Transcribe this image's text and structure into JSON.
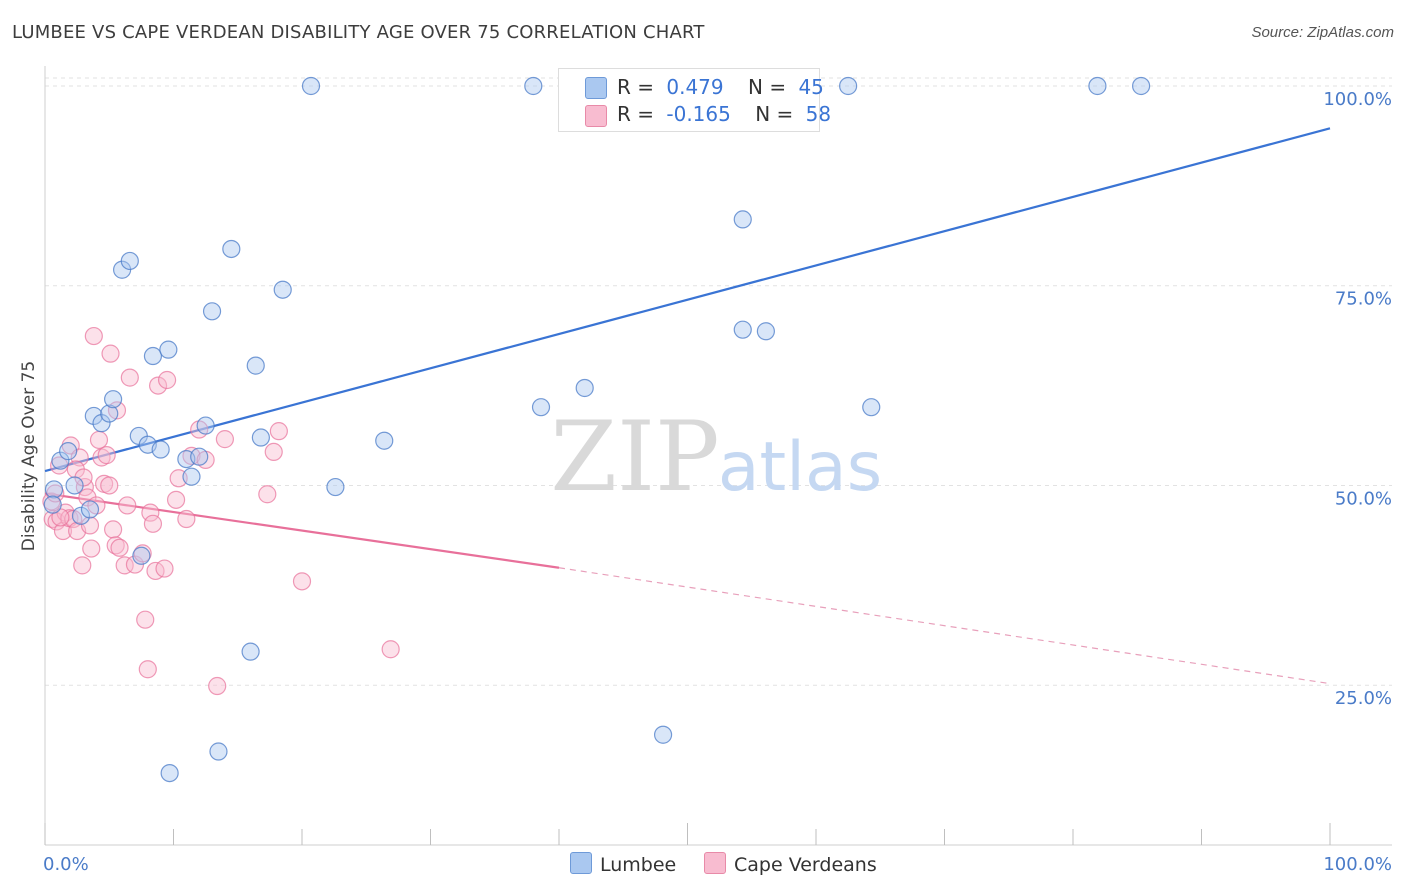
{
  "header": {
    "title": "LUMBEE VS CAPE VERDEAN DISABILITY AGE OVER 75 CORRELATION CHART",
    "source": "Source: ZipAtlas.com"
  },
  "legend": {
    "rows": [
      {
        "r_label": "R =",
        "r_value": "0.479",
        "n_label": "N =",
        "n_value": "45",
        "color": "#aac8f0"
      },
      {
        "r_label": "R =",
        "r_value": "-0.165",
        "n_label": "N =",
        "n_value": "58",
        "color": "#f8bcd0"
      }
    ]
  },
  "bottom_legend": {
    "lumbee": "Lumbee",
    "cape": "Cape Verdeans"
  },
  "watermark": {
    "zip": "ZIP",
    "atlas": "atlas"
  },
  "chart_data": {
    "type": "scatter",
    "title": "LUMBEE VS CAPE VERDEAN DISABILITY AGE OVER 75 CORRELATION CHART",
    "ylabel": "Disability Age Over 75",
    "xlabel": "",
    "xlim": [
      0,
      100
    ],
    "ylim": [
      5,
      102
    ],
    "x_tick_labels": [
      "0.0%",
      "100.0%"
    ],
    "y_ticks": [
      25,
      50,
      75,
      100
    ],
    "y_tick_labels": [
      "25.0%",
      "50.0%",
      "75.0%",
      "100.0%"
    ],
    "colors": {
      "lumbee": "#4a7bc8",
      "lumbee_fill": "#aac8f0",
      "cape": "#e8709a",
      "cape_fill": "#f8bcd0"
    },
    "series": [
      {
        "name": "Lumbee",
        "trend": {
          "x0": 0,
          "y0": 51.8,
          "x1": 100,
          "y1": 94.7
        },
        "points": [
          [
            0.7,
            49.5
          ],
          [
            1.2,
            53.1
          ],
          [
            1.8,
            54.3
          ],
          [
            2.3,
            50.0
          ],
          [
            2.8,
            46.2
          ],
          [
            3.5,
            47.0
          ],
          [
            3.8,
            58.7
          ],
          [
            4.4,
            57.8
          ],
          [
            5.0,
            59.0
          ],
          [
            5.3,
            60.8
          ],
          [
            6.0,
            77.0
          ],
          [
            6.6,
            78.1
          ],
          [
            7.3,
            56.2
          ],
          [
            8.0,
            55.1
          ],
          [
            8.4,
            66.2
          ],
          [
            9.0,
            54.5
          ],
          [
            9.6,
            67.0
          ],
          [
            11.0,
            53.3
          ],
          [
            11.4,
            51.1
          ],
          [
            12.0,
            53.6
          ],
          [
            12.5,
            57.5
          ],
          [
            13.0,
            71.8
          ],
          [
            14.5,
            79.6
          ],
          [
            16.4,
            65.0
          ],
          [
            16.8,
            56.0
          ],
          [
            18.5,
            74.5
          ],
          [
            22.6,
            49.8
          ],
          [
            26.4,
            55.6
          ],
          [
            38.6,
            59.8
          ],
          [
            42.0,
            62.2
          ],
          [
            54.3,
            83.3
          ],
          [
            54.3,
            69.5
          ],
          [
            56.1,
            69.3
          ],
          [
            64.3,
            59.8
          ],
          [
            7.5,
            41.2
          ],
          [
            16.0,
            29.2
          ],
          [
            13.5,
            16.7
          ],
          [
            9.7,
            14.0
          ],
          [
            48.1,
            18.8
          ],
          [
            20.7,
            100.0
          ],
          [
            38.0,
            100.0
          ],
          [
            62.5,
            100.0
          ],
          [
            81.9,
            100.0
          ],
          [
            85.3,
            100.0
          ],
          [
            0.6,
            47.6
          ]
        ]
      },
      {
        "name": "Cape Verdeans",
        "trend": {
          "x0": 0,
          "y0": 49.0,
          "x1": 40,
          "y1": 39.7,
          "x_dash_end": 100,
          "y_dash_end": 25.2
        },
        "points": [
          [
            0.5,
            48.0
          ],
          [
            0.6,
            45.8
          ],
          [
            0.9,
            45.5
          ],
          [
            1.1,
            52.5
          ],
          [
            1.4,
            44.3
          ],
          [
            1.6,
            46.6
          ],
          [
            1.9,
            45.9
          ],
          [
            2.0,
            55.0
          ],
          [
            2.2,
            45.8
          ],
          [
            2.5,
            44.3
          ],
          [
            2.7,
            53.5
          ],
          [
            2.9,
            40.0
          ],
          [
            3.1,
            49.8
          ],
          [
            3.3,
            48.5
          ],
          [
            3.5,
            45.0
          ],
          [
            3.6,
            42.1
          ],
          [
            3.8,
            68.7
          ],
          [
            4.0,
            47.5
          ],
          [
            4.2,
            55.7
          ],
          [
            4.4,
            53.5
          ],
          [
            4.6,
            50.2
          ],
          [
            4.8,
            53.8
          ],
          [
            5.0,
            50.0
          ],
          [
            5.1,
            66.5
          ],
          [
            5.3,
            44.5
          ],
          [
            5.5,
            42.5
          ],
          [
            5.6,
            59.4
          ],
          [
            5.8,
            42.2
          ],
          [
            6.2,
            40.0
          ],
          [
            6.4,
            47.5
          ],
          [
            6.6,
            63.5
          ],
          [
            7.0,
            40.1
          ],
          [
            7.6,
            41.5
          ],
          [
            7.8,
            33.2
          ],
          [
            8.0,
            27.0
          ],
          [
            8.2,
            46.6
          ],
          [
            8.4,
            45.2
          ],
          [
            8.6,
            39.3
          ],
          [
            8.8,
            62.5
          ],
          [
            9.3,
            39.6
          ],
          [
            9.5,
            63.2
          ],
          [
            10.2,
            48.2
          ],
          [
            10.4,
            50.9
          ],
          [
            11.0,
            45.8
          ],
          [
            11.4,
            53.7
          ],
          [
            12.0,
            57.0
          ],
          [
            12.5,
            53.2
          ],
          [
            13.4,
            24.9
          ],
          [
            14.0,
            55.8
          ],
          [
            17.3,
            48.9
          ],
          [
            17.8,
            54.2
          ],
          [
            18.2,
            56.8
          ],
          [
            20.0,
            38.0
          ],
          [
            26.9,
            29.5
          ],
          [
            1.2,
            46.0
          ],
          [
            2.4,
            52.0
          ],
          [
            3.0,
            51.0
          ],
          [
            0.8,
            49.0
          ]
        ]
      }
    ]
  }
}
